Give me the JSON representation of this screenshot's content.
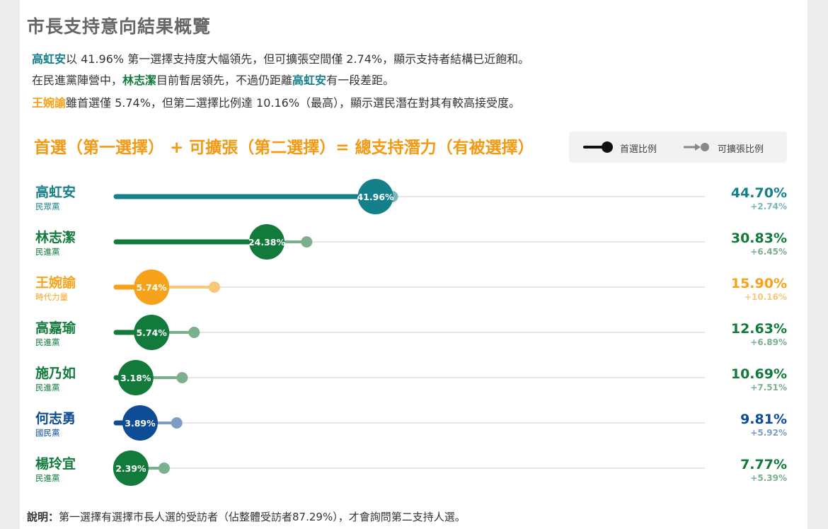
{
  "title": "市長支持意向結果概覽",
  "description": {
    "line1": {
      "name": "高虹安",
      "text": "以 41.96% 第一選擇支持度大幅領先，但可擴張空間僅 2.74%，顯示支持者結構已近飽和。"
    },
    "line2": {
      "pre": "在民進黨陣營中，",
      "name1": "林志潔",
      "mid": "目前暫居領先，不過仍距離",
      "name2": "高虹安",
      "post": "有一段差距。"
    },
    "line3": {
      "name": "王婉諭",
      "text": "雖首選僅 5.74%，但第二選擇比例達 10.16%（最高），顯示選民潛在對其有較高接受度。"
    }
  },
  "chart_heading": "首選（第一選擇） + 可擴張（第二選擇）= 總支持潛力（有被選擇）",
  "legend": {
    "first_label": "首選比例",
    "second_label": "可擴張比例"
  },
  "note": {
    "label": "說明：",
    "text": "第一選擇有選擇市長人選的受訪者（佔整體受訪者87.29%），才會詢問第二支持人選。"
  },
  "colors": {
    "teal": "#14818a",
    "green": "#127a3b",
    "orange": "#f8a21b",
    "blue": "#0f4c96",
    "track": "#e6e6e6"
  },
  "chart_data": {
    "type": "dumbbell",
    "x_range": [
      0,
      100
    ],
    "series": [
      {
        "name": "首選比例"
      },
      {
        "name": "可擴張比例"
      }
    ],
    "candidates": [
      {
        "name": "高虹安",
        "party": "民眾黨",
        "first": 41.96,
        "expand": 2.74,
        "total": "44.70%",
        "expand_label": "+2.74%",
        "first_label": "41.96%",
        "color": "#14818a",
        "light": "#7ab7bc"
      },
      {
        "name": "林志潔",
        "party": "民進黨",
        "first": 24.38,
        "expand": 6.45,
        "total": "30.83%",
        "expand_label": "+6.45%",
        "first_label": "24.38%",
        "color": "#127a3b",
        "light": "#7bb08e"
      },
      {
        "name": "王婉諭",
        "party": "時代力量",
        "first": 5.74,
        "expand": 10.16,
        "total": "15.90%",
        "expand_label": "+10.16%",
        "first_label": "5.74%",
        "color": "#f8a21b",
        "light": "#f9c77a"
      },
      {
        "name": "高嘉瑜",
        "party": "民進黨",
        "first": 5.74,
        "expand": 6.89,
        "total": "12.63%",
        "expand_label": "+6.89%",
        "first_label": "5.74%",
        "color": "#127a3b",
        "light": "#7bb08e"
      },
      {
        "name": "施乃如",
        "party": "民進黨",
        "first": 3.18,
        "expand": 7.51,
        "total": "10.69%",
        "expand_label": "+7.51%",
        "first_label": "3.18%",
        "color": "#127a3b",
        "light": "#7bb08e"
      },
      {
        "name": "何志勇",
        "party": "國民黨",
        "first": 3.89,
        "expand": 5.92,
        "total": "9.81%",
        "expand_label": "+5.92%",
        "first_label": "3.89%",
        "color": "#0f4c96",
        "light": "#7d9dc6"
      },
      {
        "name": "楊玲宜",
        "party": "民進黨",
        "first": 2.39,
        "expand": 5.39,
        "total": "7.77%",
        "expand_label": "+5.39%",
        "first_label": "2.39%",
        "color": "#127a3b",
        "light": "#7bb08e"
      }
    ]
  }
}
